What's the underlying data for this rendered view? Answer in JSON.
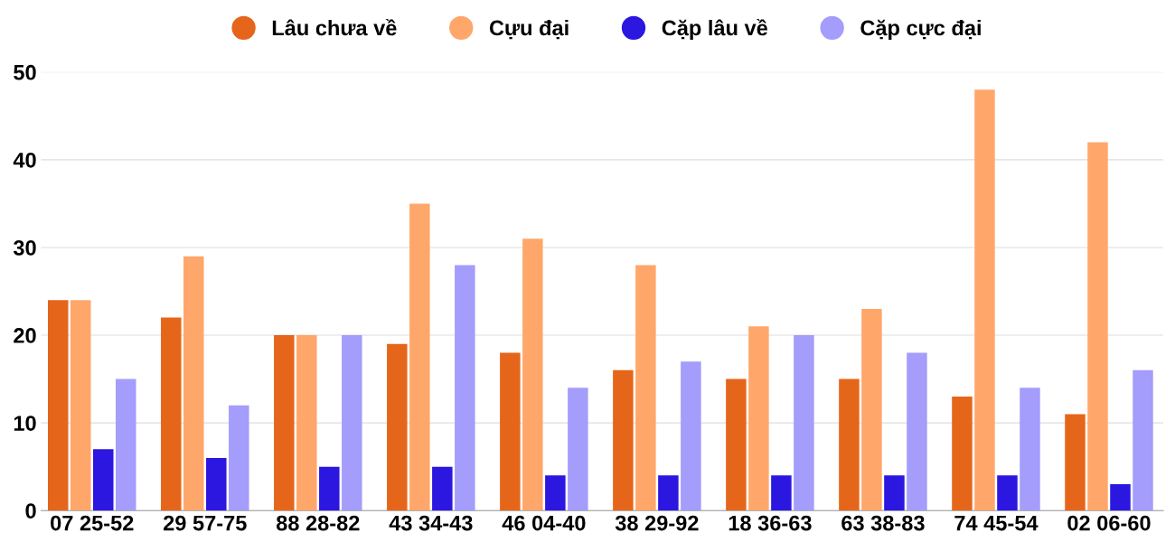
{
  "chart_data": {
    "type": "bar",
    "categories": [
      "07 25-52",
      "29 57-75",
      "88 28-82",
      "43 34-43",
      "46 04-40",
      "38 29-92",
      "18 36-63",
      "63 38-83",
      "74 45-54",
      "02 06-60"
    ],
    "series": [
      {
        "name": "Lâu chưa về",
        "color": "#e5661a",
        "values": [
          24,
          22,
          20,
          19,
          18,
          16,
          15,
          15,
          13,
          11
        ]
      },
      {
        "name": "Cựu đại",
        "color": "#ffa76b",
        "values": [
          24,
          29,
          20,
          35,
          31,
          28,
          21,
          23,
          48,
          42
        ]
      },
      {
        "name": "Cặp lâu về",
        "color": "#2b17e0",
        "values": [
          7,
          6,
          5,
          5,
          4,
          4,
          4,
          4,
          4,
          3
        ]
      },
      {
        "name": "Cặp cực đại",
        "color": "#a49dfb",
        "values": [
          15,
          12,
          20,
          28,
          14,
          17,
          20,
          18,
          14,
          16
        ]
      }
    ],
    "ylim": [
      0,
      50
    ],
    "yticks": [
      0,
      10,
      20,
      30,
      40,
      50
    ],
    "grid": "y",
    "legend": "top",
    "marker": "circle"
  }
}
